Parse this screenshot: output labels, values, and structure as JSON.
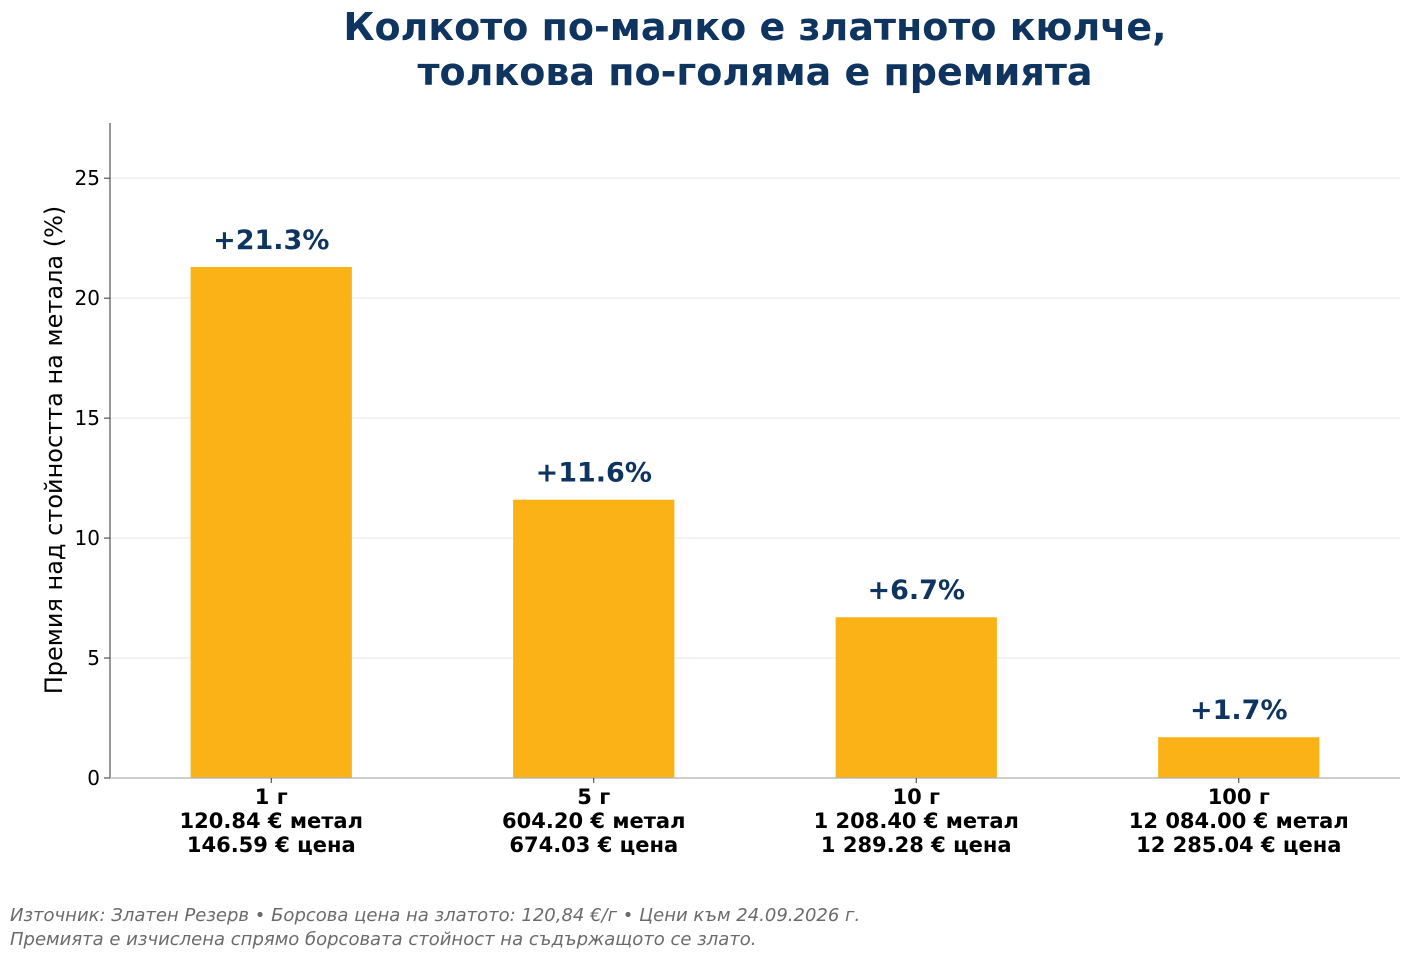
{
  "chart_data": {
    "type": "bar",
    "title_lines": [
      "Колкото по-малко е златното кюлче,",
      "толкова по-голяма е премията"
    ],
    "ylabel": "Премия над стойността на метала (%)",
    "ylim": [
      0,
      27.3
    ],
    "yticks": [
      0,
      5,
      10,
      15,
      20,
      25
    ],
    "grid": true,
    "bar_color": "#fbb216",
    "label_color": "#0f3460",
    "categories": [
      {
        "lines": [
          "1 г",
          "120.84 € метал",
          "146.59 € цена"
        ]
      },
      {
        "lines": [
          "5 г",
          "604.20 € метал",
          "674.03 € цена"
        ]
      },
      {
        "lines": [
          "10 г",
          "1 208.40 € метал",
          "1 289.28 € цена"
        ]
      },
      {
        "lines": [
          "100 г",
          "12 084.00 € метал",
          "12 285.04 € цена"
        ]
      }
    ],
    "values": [
      21.3,
      11.6,
      6.7,
      1.7
    ],
    "data_labels": [
      "+21.3%",
      "+11.6%",
      "+6.7%",
      "+1.7%"
    ]
  },
  "footnote": {
    "line1": "Източник: Златен Резерв • Борсова цена на златото: 120,84 €/г • Цени към 24.09.2026 г.",
    "line2": "Премията е изчислена спрямо борсовата стойност на съдържащото се злато."
  }
}
